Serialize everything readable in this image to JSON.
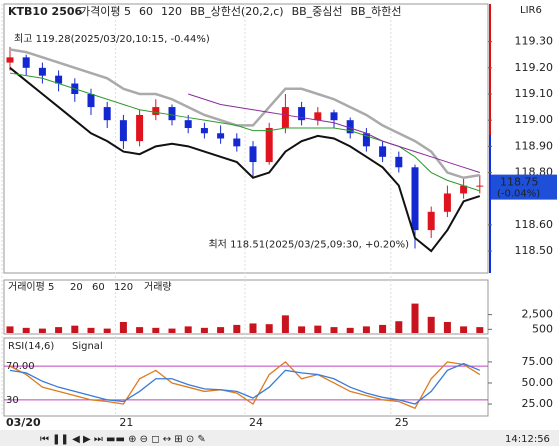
{
  "chart_data": {
    "type": "candlestick",
    "symbol": "KTB10 2506",
    "legend": [
      "가격이평 5",
      "60",
      "120",
      "BB_상한선(20,2,c)",
      "BB_중심선",
      "BB_하한선"
    ],
    "high_note": "최고 119.28(2025/03/20,10:15, -0.44%)",
    "low_note": "최저 118.51(2025/03/25,09:30, +0.20%)",
    "categories": [
      "03/20",
      null,
      null,
      null,
      null,
      null,
      null,
      "21",
      null,
      null,
      null,
      null,
      null,
      null,
      null,
      "24",
      null,
      null,
      null,
      null,
      null,
      null,
      null,
      null,
      "25",
      null,
      null,
      null,
      null,
      null
    ],
    "candles": [
      [
        119.22,
        119.28,
        119.19,
        119.24
      ],
      [
        119.24,
        119.25,
        119.17,
        119.2
      ],
      [
        119.2,
        119.22,
        119.14,
        119.17
      ],
      [
        119.17,
        119.19,
        119.11,
        119.14
      ],
      [
        119.14,
        119.16,
        119.07,
        119.1
      ],
      [
        119.1,
        119.12,
        119.02,
        119.05
      ],
      [
        119.05,
        119.07,
        118.97,
        119.0
      ],
      [
        119.0,
        119.02,
        118.89,
        118.92
      ],
      [
        118.92,
        119.04,
        118.9,
        119.02
      ],
      [
        119.02,
        119.08,
        119.0,
        119.05
      ],
      [
        119.05,
        119.06,
        118.98,
        119.0
      ],
      [
        119.0,
        119.02,
        118.95,
        118.97
      ],
      [
        118.97,
        118.99,
        118.93,
        118.95
      ],
      [
        118.95,
        118.98,
        118.91,
        118.93
      ],
      [
        118.93,
        118.95,
        118.88,
        118.9
      ],
      [
        118.9,
        118.92,
        118.78,
        118.84
      ],
      [
        118.84,
        118.99,
        118.83,
        118.97
      ],
      [
        118.97,
        119.1,
        118.95,
        119.05
      ],
      [
        119.05,
        119.07,
        118.98,
        119.0
      ],
      [
        119.0,
        119.05,
        118.98,
        119.03
      ],
      [
        119.03,
        119.04,
        118.97,
        119.0
      ],
      [
        119.0,
        119.01,
        118.93,
        118.95
      ],
      [
        118.95,
        118.97,
        118.88,
        118.9
      ],
      [
        118.9,
        118.92,
        118.84,
        118.86
      ],
      [
        118.86,
        118.88,
        118.8,
        118.82
      ],
      [
        118.82,
        118.83,
        118.51,
        118.58
      ],
      [
        118.58,
        118.67,
        118.55,
        118.65
      ],
      [
        118.65,
        118.75,
        118.63,
        118.72
      ],
      [
        118.72,
        118.78,
        118.7,
        118.75
      ],
      [
        118.75,
        118.79,
        118.72,
        118.75
      ]
    ],
    "up_color": "#e0141e",
    "down_color": "#1428d2",
    "lines": [
      {
        "color": "#aaaaaa",
        "values": [
          119.27,
          119.26,
          119.24,
          119.22,
          119.2,
          119.18,
          119.16,
          119.12,
          119.1,
          119.1,
          119.08,
          119.05,
          119.02,
          119.0,
          118.98,
          118.98,
          119.05,
          119.12,
          119.12,
          119.1,
          119.08,
          119.05,
          119.02,
          118.98,
          118.95,
          118.92,
          118.88,
          118.8,
          118.78,
          118.79
        ]
      },
      {
        "color": "#111111",
        "values": [
          119.2,
          119.15,
          119.1,
          119.05,
          119.0,
          118.95,
          118.92,
          118.88,
          118.87,
          118.9,
          118.91,
          118.9,
          118.88,
          118.86,
          118.84,
          118.78,
          118.8,
          118.88,
          118.92,
          118.94,
          118.93,
          118.9,
          118.86,
          118.82,
          118.75,
          118.55,
          118.5,
          118.58,
          118.69,
          118.71
        ]
      },
      {
        "color": "#2e9a2e",
        "values": [
          119.18,
          119.17,
          119.16,
          119.14,
          119.12,
          119.1,
          119.08,
          119.06,
          119.04,
          119.03,
          119.02,
          119.01,
          119.0,
          118.99,
          118.98,
          118.96,
          118.96,
          118.97,
          118.97,
          118.97,
          118.97,
          118.96,
          118.94,
          118.92,
          118.9,
          118.86,
          118.8,
          118.77,
          118.75,
          118.73
        ]
      },
      {
        "color": "#8a2a9a",
        "values": [
          null,
          null,
          null,
          null,
          null,
          null,
          null,
          null,
          null,
          null,
          null,
          119.1,
          119.08,
          119.06,
          119.05,
          119.04,
          119.03,
          119.02,
          119.01,
          119.0,
          118.99,
          118.97,
          118.95,
          118.92,
          118.9,
          118.88,
          118.86,
          118.84,
          118.82,
          118.8
        ]
      }
    ],
    "ylim": [
      118.42,
      119.44
    ],
    "yticks": [
      {
        "value": 119.3,
        "label": "119.30"
      },
      {
        "value": 119.2,
        "label": "119.20"
      },
      {
        "value": 119.1,
        "label": "119.10"
      },
      {
        "value": 119.0,
        "label": "119.00"
      },
      {
        "value": 118.9,
        "label": "118.90"
      },
      {
        "value": 118.8,
        "label": "118.80"
      },
      {
        "value": 118.6,
        "label": "118.60"
      },
      {
        "value": 118.5,
        "label": "118.50"
      }
    ],
    "current_price": 118.75,
    "current_change": "(-0.04%)",
    "volume_legend": [
      "거래이평 5",
      "20",
      "60",
      "120",
      "거래량"
    ],
    "volume": [
      900,
      700,
      600,
      800,
      1000,
      700,
      600,
      1500,
      800,
      700,
      600,
      900,
      700,
      800,
      1100,
      1300,
      1200,
      2400,
      900,
      1000,
      800,
      700,
      900,
      1100,
      1600,
      4000,
      2200,
      1500,
      900,
      800
    ],
    "volume_color": "#c8141e",
    "volume_ylim": [
      0,
      6800
    ],
    "volume_ticks": [
      {
        "value": 2500,
        "label": "2,500"
      },
      500
    ],
    "rsi_legend": [
      "RSI(14,6)",
      "Signal"
    ],
    "rsi": [
      70,
      60,
      45,
      40,
      35,
      30,
      28,
      25,
      55,
      65,
      50,
      45,
      40,
      42,
      38,
      25,
      60,
      75,
      55,
      60,
      50,
      40,
      35,
      30,
      28,
      20,
      55,
      75,
      72,
      60
    ],
    "signal": [
      65,
      62,
      52,
      45,
      40,
      35,
      30,
      28,
      40,
      55,
      55,
      48,
      43,
      42,
      40,
      32,
      45,
      65,
      62,
      60,
      55,
      45,
      38,
      33,
      30,
      25,
      40,
      65,
      73,
      65
    ],
    "rsi_color": "#e07a1e",
    "signal_color": "#3a7ad8",
    "rsi_ylim": [
      12,
      101
    ],
    "rsi_ticks": [
      {
        "value": 75,
        "label": "75.00"
      },
      {
        "value": 50,
        "label": "50.00"
      },
      {
        "value": 25,
        "label": "25.00"
      }
    ],
    "rsi_levels": [
      {
        "value": 70,
        "label": "70.00"
      },
      {
        "value": 30,
        "label": "30"
      }
    ],
    "clock": "14:12:56",
    "corner": "LIR6"
  }
}
